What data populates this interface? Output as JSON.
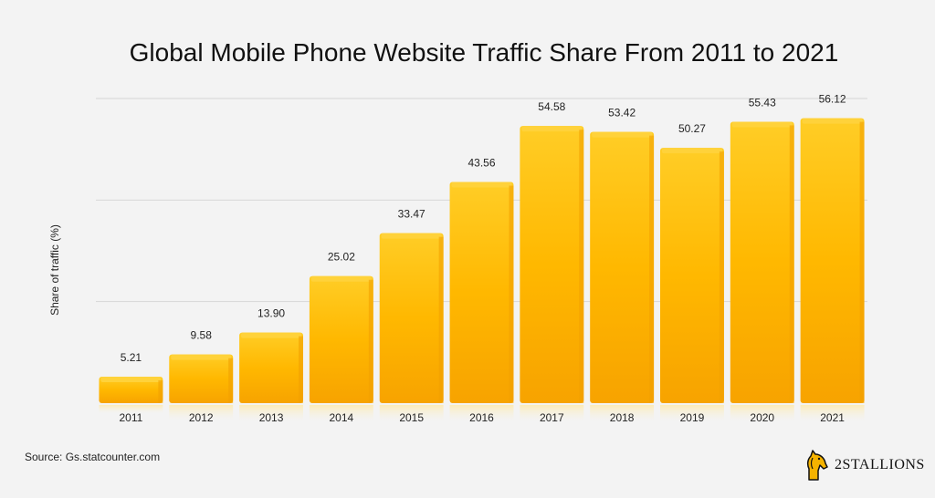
{
  "title": "Global Mobile Phone Website Traffic Share From 2011 to 2021",
  "source": "Source: Gs.statcounter.com",
  "logo_text": "2STALLIONS",
  "colors": {
    "bar_top": "#ffc91a",
    "bar_mid": "#ffb400",
    "bar_bottom": "#f7a100",
    "grid": "#d6d6d6"
  },
  "chart_data": {
    "type": "bar",
    "title": "Global Mobile Phone Website Traffic Share From 2011 to 2021",
    "ylabel": "Share of traffic (%)",
    "xlabel": "",
    "categories": [
      "2011",
      "2012",
      "2013",
      "2014",
      "2015",
      "2016",
      "2017",
      "2018",
      "2019",
      "2020",
      "2021"
    ],
    "values": [
      5.21,
      9.58,
      13.9,
      25.02,
      33.47,
      43.56,
      54.58,
      53.42,
      50.27,
      55.43,
      56.12
    ],
    "value_labels": [
      "5.21",
      "9.58",
      "13.90",
      "25.02",
      "33.47",
      "43.56",
      "54.58",
      "53.42",
      "50.27",
      "55.43",
      "56.12"
    ],
    "ylim": [
      0,
      60
    ],
    "grid": true,
    "legend": "none"
  }
}
